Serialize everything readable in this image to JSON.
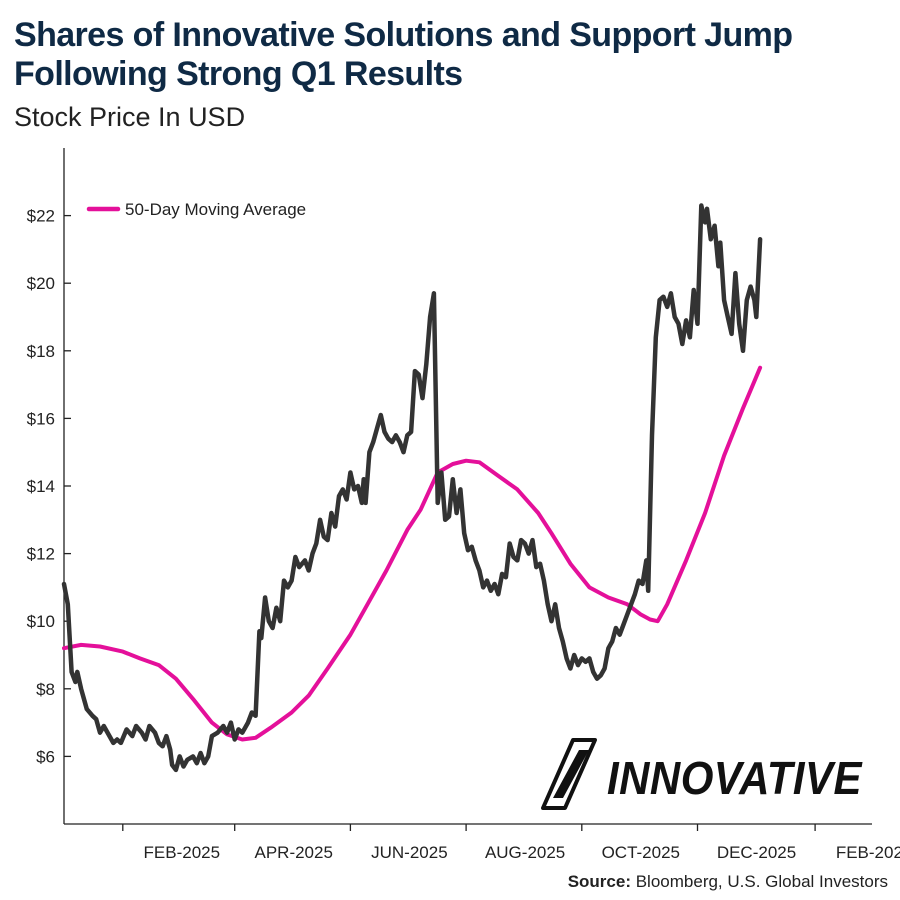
{
  "chart_data": {
    "type": "line",
    "title": "Shares of Innovative Solutions and Support Jump Following Strong Q1 Results",
    "subtitle": "Stock Price In USD",
    "source_label": "Source:",
    "source_text": "Bloomberg, U.S. Global Investors",
    "logo_text": "INNOVATIVE",
    "ylim": [
      4,
      24
    ],
    "y_ticks": [
      6,
      8,
      10,
      12,
      14,
      16,
      18,
      20,
      22
    ],
    "y_tick_labels": [
      "$6",
      "$8",
      "$10",
      "$12",
      "$14",
      "$16",
      "$18",
      "$20",
      "$22"
    ],
    "xlim": [
      "2025-01-01",
      "2026-03-03"
    ],
    "x_ticks": [
      "2025-02-01",
      "2025-04-01",
      "2025-06-01",
      "2025-08-01",
      "2025-10-01",
      "2025-12-01",
      "2026-02-01"
    ],
    "x_tick_labels": [
      "FEB-2025",
      "APR-2025",
      "JUN-2025",
      "AUG-2025",
      "OCT-2025",
      "DEC-2025",
      "FEB-2026"
    ],
    "legend": {
      "placement": "top-left"
    },
    "grid": false,
    "series": [
      {
        "name": "",
        "color": "#333333",
        "points": [
          [
            "2025-01-01",
            11.1
          ],
          [
            "2025-01-03",
            10.5
          ],
          [
            "2025-01-05",
            8.5
          ],
          [
            "2025-01-07",
            8.2
          ],
          [
            "2025-01-08",
            8.5
          ],
          [
            "2025-01-10",
            8.0
          ],
          [
            "2025-01-13",
            7.4
          ],
          [
            "2025-01-16",
            7.2
          ],
          [
            "2025-01-18",
            7.1
          ],
          [
            "2025-01-20",
            6.7
          ],
          [
            "2025-01-22",
            6.9
          ],
          [
            "2025-01-25",
            6.6
          ],
          [
            "2025-01-27",
            6.4
          ],
          [
            "2025-01-29",
            6.5
          ],
          [
            "2025-01-31",
            6.4
          ],
          [
            "2025-02-03",
            6.8
          ],
          [
            "2025-02-06",
            6.6
          ],
          [
            "2025-02-08",
            6.9
          ],
          [
            "2025-02-11",
            6.7
          ],
          [
            "2025-02-13",
            6.5
          ],
          [
            "2025-02-15",
            6.9
          ],
          [
            "2025-02-18",
            6.7
          ],
          [
            "2025-02-20",
            6.4
          ],
          [
            "2025-02-22",
            6.3
          ],
          [
            "2025-02-24",
            6.6
          ],
          [
            "2025-02-26",
            6.2
          ],
          [
            "2025-02-27",
            5.75
          ],
          [
            "2025-03-01",
            5.6
          ],
          [
            "2025-03-03",
            6.0
          ],
          [
            "2025-03-05",
            5.7
          ],
          [
            "2025-03-07",
            5.9
          ],
          [
            "2025-03-10",
            6.0
          ],
          [
            "2025-03-12",
            5.8
          ],
          [
            "2025-03-14",
            6.1
          ],
          [
            "2025-03-16",
            5.8
          ],
          [
            "2025-03-18",
            6.0
          ],
          [
            "2025-03-20",
            6.6
          ],
          [
            "2025-03-23",
            6.7
          ],
          [
            "2025-03-26",
            6.9
          ],
          [
            "2025-03-28",
            6.7
          ],
          [
            "2025-03-30",
            7.0
          ],
          [
            "2025-04-01",
            6.5
          ],
          [
            "2025-04-03",
            6.8
          ],
          [
            "2025-04-05",
            6.7
          ],
          [
            "2025-04-08",
            7.0
          ],
          [
            "2025-04-10",
            7.3
          ],
          [
            "2025-04-12",
            7.2
          ],
          [
            "2025-04-14",
            9.7
          ],
          [
            "2025-04-15",
            9.5
          ],
          [
            "2025-04-17",
            10.7
          ],
          [
            "2025-04-19",
            10.0
          ],
          [
            "2025-04-21",
            9.8
          ],
          [
            "2025-04-23",
            10.4
          ],
          [
            "2025-04-25",
            10.0
          ],
          [
            "2025-04-27",
            11.2
          ],
          [
            "2025-04-29",
            11.0
          ],
          [
            "2025-05-01",
            11.2
          ],
          [
            "2025-05-03",
            11.9
          ],
          [
            "2025-05-05",
            11.6
          ],
          [
            "2025-05-08",
            11.8
          ],
          [
            "2025-05-10",
            11.5
          ],
          [
            "2025-05-12",
            12.0
          ],
          [
            "2025-05-14",
            12.3
          ],
          [
            "2025-05-16",
            13.0
          ],
          [
            "2025-05-18",
            12.5
          ],
          [
            "2025-05-20",
            12.4
          ],
          [
            "2025-05-22",
            13.2
          ],
          [
            "2025-05-24",
            12.8
          ],
          [
            "2025-05-26",
            13.7
          ],
          [
            "2025-05-28",
            13.9
          ],
          [
            "2025-05-30",
            13.6
          ],
          [
            "2025-06-01",
            14.4
          ],
          [
            "2025-06-03",
            13.9
          ],
          [
            "2025-06-05",
            14.0
          ],
          [
            "2025-06-07",
            13.5
          ],
          [
            "2025-06-08",
            14.2
          ],
          [
            "2025-06-09",
            13.5
          ],
          [
            "2025-06-11",
            15.0
          ],
          [
            "2025-06-13",
            15.3
          ],
          [
            "2025-06-15",
            15.7
          ],
          [
            "2025-06-17",
            16.1
          ],
          [
            "2025-06-19",
            15.6
          ],
          [
            "2025-06-21",
            15.4
          ],
          [
            "2025-06-23",
            15.3
          ],
          [
            "2025-06-25",
            15.5
          ],
          [
            "2025-06-27",
            15.3
          ],
          [
            "2025-06-29",
            15.0
          ],
          [
            "2025-07-01",
            15.5
          ],
          [
            "2025-07-03",
            15.6
          ],
          [
            "2025-07-05",
            17.4
          ],
          [
            "2025-07-07",
            17.3
          ],
          [
            "2025-07-09",
            16.6
          ],
          [
            "2025-07-11",
            17.6
          ],
          [
            "2025-07-13",
            19.0
          ],
          [
            "2025-07-15",
            19.7
          ],
          [
            "2025-07-17",
            13.5
          ],
          [
            "2025-07-19",
            14.4
          ],
          [
            "2025-07-21",
            13.0
          ],
          [
            "2025-07-23",
            13.1
          ],
          [
            "2025-07-25",
            14.2
          ],
          [
            "2025-07-27",
            13.2
          ],
          [
            "2025-07-29",
            13.9
          ],
          [
            "2025-07-31",
            12.6
          ],
          [
            "2025-08-02",
            12.1
          ],
          [
            "2025-08-04",
            12.2
          ],
          [
            "2025-08-06",
            11.8
          ],
          [
            "2025-08-08",
            11.5
          ],
          [
            "2025-08-10",
            11.0
          ],
          [
            "2025-08-12",
            11.2
          ],
          [
            "2025-08-14",
            10.9
          ],
          [
            "2025-08-16",
            11.1
          ],
          [
            "2025-08-18",
            10.8
          ],
          [
            "2025-08-20",
            11.4
          ],
          [
            "2025-08-22",
            11.3
          ],
          [
            "2025-08-24",
            12.3
          ],
          [
            "2025-08-26",
            11.9
          ],
          [
            "2025-08-28",
            11.8
          ],
          [
            "2025-08-30",
            12.4
          ],
          [
            "2025-09-01",
            12.3
          ],
          [
            "2025-09-03",
            12.0
          ],
          [
            "2025-09-05",
            12.4
          ],
          [
            "2025-09-07",
            11.6
          ],
          [
            "2025-09-09",
            11.7
          ],
          [
            "2025-09-11",
            11.2
          ],
          [
            "2025-09-13",
            10.5
          ],
          [
            "2025-09-15",
            10.0
          ],
          [
            "2025-09-17",
            10.5
          ],
          [
            "2025-09-19",
            9.8
          ],
          [
            "2025-09-21",
            9.4
          ],
          [
            "2025-09-23",
            8.9
          ],
          [
            "2025-09-25",
            8.6
          ],
          [
            "2025-09-27",
            9.0
          ],
          [
            "2025-09-29",
            8.7
          ],
          [
            "2025-10-01",
            8.9
          ],
          [
            "2025-10-03",
            8.8
          ],
          [
            "2025-10-05",
            8.9
          ],
          [
            "2025-10-07",
            8.5
          ],
          [
            "2025-10-09",
            8.3
          ],
          [
            "2025-10-11",
            8.4
          ],
          [
            "2025-10-13",
            8.6
          ],
          [
            "2025-10-15",
            9.2
          ],
          [
            "2025-10-17",
            9.4
          ],
          [
            "2025-10-19",
            9.8
          ],
          [
            "2025-10-21",
            9.6
          ],
          [
            "2025-10-23",
            9.9
          ],
          [
            "2025-10-25",
            10.2
          ],
          [
            "2025-10-27",
            10.5
          ],
          [
            "2025-10-29",
            10.8
          ],
          [
            "2025-10-31",
            11.2
          ],
          [
            "2025-11-02",
            11.1
          ],
          [
            "2025-11-04",
            11.8
          ],
          [
            "2025-11-05",
            10.9
          ],
          [
            "2025-11-07",
            15.5
          ],
          [
            "2025-11-09",
            18.4
          ],
          [
            "2025-11-11",
            19.5
          ],
          [
            "2025-11-13",
            19.6
          ],
          [
            "2025-11-15",
            19.3
          ],
          [
            "2025-11-17",
            19.7
          ],
          [
            "2025-11-19",
            19.0
          ],
          [
            "2025-11-21",
            18.8
          ],
          [
            "2025-11-23",
            18.2
          ],
          [
            "2025-11-25",
            18.9
          ],
          [
            "2025-11-27",
            18.4
          ],
          [
            "2025-11-29",
            19.8
          ],
          [
            "2025-12-01",
            18.8
          ],
          [
            "2025-12-03",
            22.3
          ],
          [
            "2025-12-05",
            21.8
          ],
          [
            "2025-12-06",
            22.2
          ],
          [
            "2025-12-08",
            21.3
          ],
          [
            "2025-12-10",
            21.7
          ],
          [
            "2025-12-12",
            20.5
          ],
          [
            "2025-12-13",
            21.2
          ],
          [
            "2025-12-15",
            19.5
          ],
          [
            "2025-12-17",
            19.0
          ],
          [
            "2025-12-19",
            18.5
          ],
          [
            "2025-12-21",
            20.3
          ],
          [
            "2025-12-23",
            18.8
          ],
          [
            "2025-12-25",
            18.0
          ],
          [
            "2025-12-27",
            19.5
          ],
          [
            "2025-12-29",
            19.9
          ],
          [
            "2025-12-31",
            19.5
          ],
          [
            "2026-01-01",
            19.0
          ],
          [
            "2026-01-03",
            21.3
          ]
        ]
      },
      {
        "name": "50-Day Moving Average",
        "color": "#e4109a",
        "points": [
          [
            "2025-01-01",
            9.2
          ],
          [
            "2025-01-10",
            9.3
          ],
          [
            "2025-01-20",
            9.25
          ],
          [
            "2025-02-01",
            9.1
          ],
          [
            "2025-02-10",
            8.9
          ],
          [
            "2025-02-20",
            8.7
          ],
          [
            "2025-03-01",
            8.3
          ],
          [
            "2025-03-10",
            7.7
          ],
          [
            "2025-03-20",
            7.0
          ],
          [
            "2025-03-28",
            6.65
          ],
          [
            "2025-04-05",
            6.5
          ],
          [
            "2025-04-12",
            6.55
          ],
          [
            "2025-04-20",
            6.85
          ],
          [
            "2025-05-01",
            7.3
          ],
          [
            "2025-05-10",
            7.8
          ],
          [
            "2025-05-20",
            8.6
          ],
          [
            "2025-06-01",
            9.6
          ],
          [
            "2025-06-10",
            10.5
          ],
          [
            "2025-06-20",
            11.5
          ],
          [
            "2025-07-01",
            12.7
          ],
          [
            "2025-07-08",
            13.3
          ],
          [
            "2025-07-17",
            14.4
          ],
          [
            "2025-07-25",
            14.65
          ],
          [
            "2025-08-01",
            14.75
          ],
          [
            "2025-08-08",
            14.7
          ],
          [
            "2025-08-18",
            14.3
          ],
          [
            "2025-08-28",
            13.9
          ],
          [
            "2025-09-08",
            13.2
          ],
          [
            "2025-09-15",
            12.6
          ],
          [
            "2025-09-25",
            11.7
          ],
          [
            "2025-10-05",
            11.0
          ],
          [
            "2025-10-15",
            10.7
          ],
          [
            "2025-10-25",
            10.5
          ],
          [
            "2025-11-01",
            10.2
          ],
          [
            "2025-11-06",
            10.05
          ],
          [
            "2025-11-10",
            10.0
          ],
          [
            "2025-11-15",
            10.5
          ],
          [
            "2025-11-25",
            11.8
          ],
          [
            "2025-12-05",
            13.2
          ],
          [
            "2025-12-15",
            14.9
          ],
          [
            "2025-12-25",
            16.3
          ],
          [
            "2026-01-03",
            17.5
          ]
        ]
      }
    ]
  }
}
